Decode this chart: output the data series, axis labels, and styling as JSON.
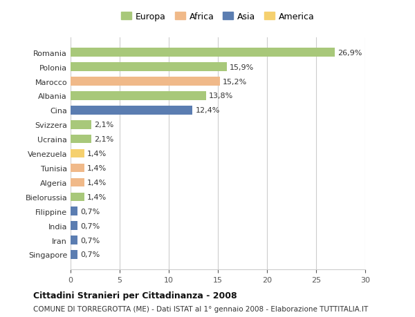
{
  "categories": [
    "Singapore",
    "Iran",
    "India",
    "Filippine",
    "Bielorussia",
    "Algeria",
    "Tunisia",
    "Venezuela",
    "Ucraina",
    "Svizzera",
    "Cina",
    "Albania",
    "Marocco",
    "Polonia",
    "Romania"
  ],
  "values": [
    0.7,
    0.7,
    0.7,
    0.7,
    1.4,
    1.4,
    1.4,
    1.4,
    2.1,
    2.1,
    12.4,
    13.8,
    15.2,
    15.9,
    26.9
  ],
  "labels": [
    "0,7%",
    "0,7%",
    "0,7%",
    "0,7%",
    "1,4%",
    "1,4%",
    "1,4%",
    "1,4%",
    "2,1%",
    "2,1%",
    "12,4%",
    "13,8%",
    "15,2%",
    "15,9%",
    "26,9%"
  ],
  "continents": [
    "Asia",
    "Asia",
    "Asia",
    "Asia",
    "Europa",
    "Africa",
    "Africa",
    "America",
    "Europa",
    "Europa",
    "Asia",
    "Europa",
    "Africa",
    "Europa",
    "Europa"
  ],
  "colors": {
    "Europa": "#a8c87a",
    "Africa": "#f0b989",
    "Asia": "#5b7db1",
    "America": "#f5d06e"
  },
  "legend_order": [
    "Europa",
    "Africa",
    "Asia",
    "America"
  ],
  "legend_colors": {
    "Europa": "#a8c87a",
    "Africa": "#f0b989",
    "Asia": "#5b7db1",
    "America": "#f5d06e"
  },
  "title": "Cittadini Stranieri per Cittadinanza - 2008",
  "subtitle": "COMUNE DI TORREGROTTA (ME) - Dati ISTAT al 1° gennaio 2008 - Elaborazione TUTTITALIA.IT",
  "xlim": [
    0,
    30
  ],
  "xticks": [
    0,
    5,
    10,
    15,
    20,
    25,
    30
  ],
  "background_color": "#ffffff",
  "grid_color": "#cccccc",
  "bar_height": 0.6
}
